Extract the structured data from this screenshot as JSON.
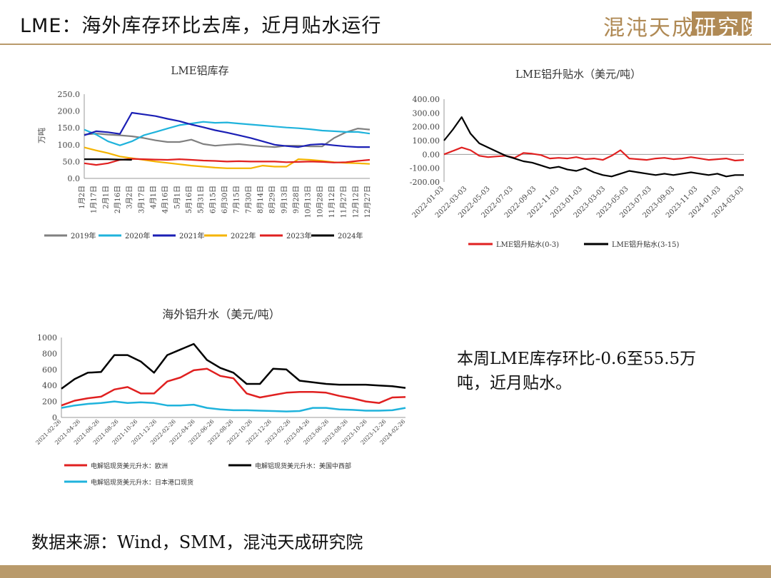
{
  "header": {
    "title": "LME：海外库存环比去库，近月贴水运行",
    "logo_text": "混沌天成",
    "logo_box_text": "研究院"
  },
  "note": "本周LME库存环比-0.6至55.5万吨，近月贴水。",
  "source": "数据来源：Wind，SMM，混沌天成研究院",
  "chart_data": [
    {
      "id": "inventory",
      "type": "line",
      "title": "LME铝库存",
      "ylabel": "万吨",
      "ylim": [
        0,
        250
      ],
      "yticks": [
        "0.0",
        "50.0",
        "100.0",
        "150.0",
        "200.0",
        "250.0"
      ],
      "categories": [
        "1月2日",
        "1月17日",
        "2月1日",
        "2月16日",
        "3月2日",
        "3月17日",
        "4月1日",
        "4月16日",
        "5月1日",
        "5月16日",
        "5月31日",
        "6月15日",
        "6月30日",
        "7月15日",
        "7月30日",
        "8月14日",
        "8月29日",
        "9月13日",
        "9月28日",
        "10月13日",
        "10月28日",
        "11月12日",
        "11月27日",
        "12月12日",
        "12月27日"
      ],
      "legend": "bottom",
      "series": [
        {
          "name": "2019年",
          "color": "#808080",
          "values": [
            130,
            133,
            130,
            128,
            125,
            120,
            113,
            108,
            108,
            115,
            102,
            97,
            100,
            102,
            98,
            95,
            93,
            97,
            97,
            95,
            95,
            120,
            137,
            148,
            145
          ]
        },
        {
          "name": "2020年",
          "color": "#1fb3dc",
          "values": [
            145,
            130,
            110,
            98,
            110,
            128,
            138,
            148,
            158,
            163,
            168,
            165,
            166,
            163,
            160,
            157,
            154,
            151,
            149,
            146,
            142,
            140,
            138,
            138,
            133
          ]
        },
        {
          "name": "2021年",
          "color": "#1b1fb5",
          "values": [
            128,
            140,
            137,
            132,
            195,
            190,
            185,
            177,
            170,
            160,
            152,
            143,
            136,
            128,
            120,
            110,
            100,
            96,
            93,
            100,
            102,
            98,
            95,
            93,
            93
          ]
        },
        {
          "name": "2022年",
          "color": "#f5b400",
          "values": [
            92,
            83,
            75,
            65,
            60,
            55,
            50,
            46,
            42,
            38,
            35,
            32,
            30,
            30,
            30,
            38,
            35,
            35,
            57,
            55,
            52,
            48,
            46,
            45,
            43
          ]
        },
        {
          "name": "2023年",
          "color": "#e02020",
          "values": [
            45,
            40,
            45,
            55,
            58,
            57,
            56,
            55,
            57,
            55,
            53,
            52,
            50,
            51,
            50,
            50,
            50,
            48,
            49,
            50,
            49,
            47,
            48,
            52,
            55
          ]
        },
        {
          "name": "2024年",
          "color": "#000000",
          "values": [
            57,
            57,
            57,
            56,
            55,
            null,
            null,
            null,
            null,
            null,
            null,
            null,
            null,
            null,
            null,
            null,
            null,
            null,
            null,
            null,
            null,
            null,
            null,
            null,
            null
          ]
        }
      ]
    },
    {
      "id": "spread",
      "type": "line",
      "title": "LME铝升贴水（美元/吨）",
      "ylim": [
        -200,
        400
      ],
      "yticks": [
        "-200.00",
        "-100.00",
        "0.00",
        "100.00",
        "200.00",
        "300.00",
        "400.00"
      ],
      "xticks": [
        "2022-01-03",
        "2022-03-03",
        "2022-05-03",
        "2022-07-03",
        "2022-09-03",
        "2022-11-03",
        "2023-01-03",
        "2023-03-03",
        "2023-05-03",
        "2023-07-03",
        "2023-09-03",
        "2023-11-03",
        "2024-01-03",
        "2024-03-03"
      ],
      "legend": "bottom",
      "series": [
        {
          "name": "LME铝升贴水(0-3)",
          "color": "#e02020",
          "values": [
            0,
            25,
            50,
            30,
            -10,
            -20,
            -15,
            -10,
            -25,
            10,
            5,
            -5,
            -30,
            -25,
            -30,
            -20,
            -35,
            -30,
            -40,
            -10,
            30,
            -30,
            -35,
            -40,
            -30,
            -25,
            -35,
            -30,
            -20,
            -30,
            -40,
            -35,
            -30,
            -45,
            -40
          ]
        },
        {
          "name": "LME铝升贴水(3-15)",
          "color": "#000000",
          "values": [
            100,
            180,
            270,
            150,
            80,
            50,
            20,
            -10,
            -30,
            -50,
            -60,
            -80,
            -100,
            -90,
            -110,
            -120,
            -100,
            -130,
            -150,
            -160,
            -140,
            -120,
            -130,
            -140,
            -150,
            -140,
            -150,
            -140,
            -130,
            -140,
            -150,
            -140,
            -160,
            -150,
            -150
          ]
        }
      ]
    },
    {
      "id": "premium",
      "type": "line",
      "title": "海外铝升水（美元/吨）",
      "ylim": [
        0,
        1000
      ],
      "yticks": [
        "0",
        "200",
        "400",
        "600",
        "800",
        "1000"
      ],
      "xticks": [
        "2021-02-26",
        "2021-04-26",
        "2021-06-26",
        "2021-08-26",
        "2021-10-26",
        "2021-12-26",
        "2022-02-26",
        "2022-04-26",
        "2022-06-26",
        "2022-08-26",
        "2022-10-26",
        "2022-12-26",
        "2023-02-26",
        "2023-04-26",
        "2023-06-26",
        "2023-08-26",
        "2023-10-26",
        "2023-12-26",
        "2024-02-26"
      ],
      "legend": "bottom",
      "series": [
        {
          "name": "电解铝现货美元升水：欧洲",
          "color": "#e02020",
          "values": [
            150,
            210,
            240,
            260,
            350,
            380,
            300,
            300,
            450,
            500,
            590,
            610,
            520,
            490,
            300,
            250,
            280,
            310,
            320,
            320,
            310,
            270,
            240,
            200,
            180,
            250,
            255
          ]
        },
        {
          "name": "电解铝现货美元升水：美国中西部",
          "color": "#000000",
          "values": [
            360,
            480,
            560,
            570,
            780,
            780,
            700,
            560,
            780,
            850,
            920,
            720,
            620,
            560,
            420,
            420,
            610,
            600,
            460,
            440,
            420,
            410,
            410,
            410,
            400,
            390,
            370
          ]
        },
        {
          "name": "电解铝现货美元升水：日本港口现货",
          "color": "#1fb3dc",
          "values": [
            120,
            150,
            170,
            180,
            200,
            180,
            190,
            180,
            150,
            150,
            160,
            120,
            100,
            90,
            90,
            85,
            80,
            75,
            80,
            120,
            120,
            100,
            95,
            85,
            85,
            90,
            120
          ]
        }
      ]
    }
  ]
}
